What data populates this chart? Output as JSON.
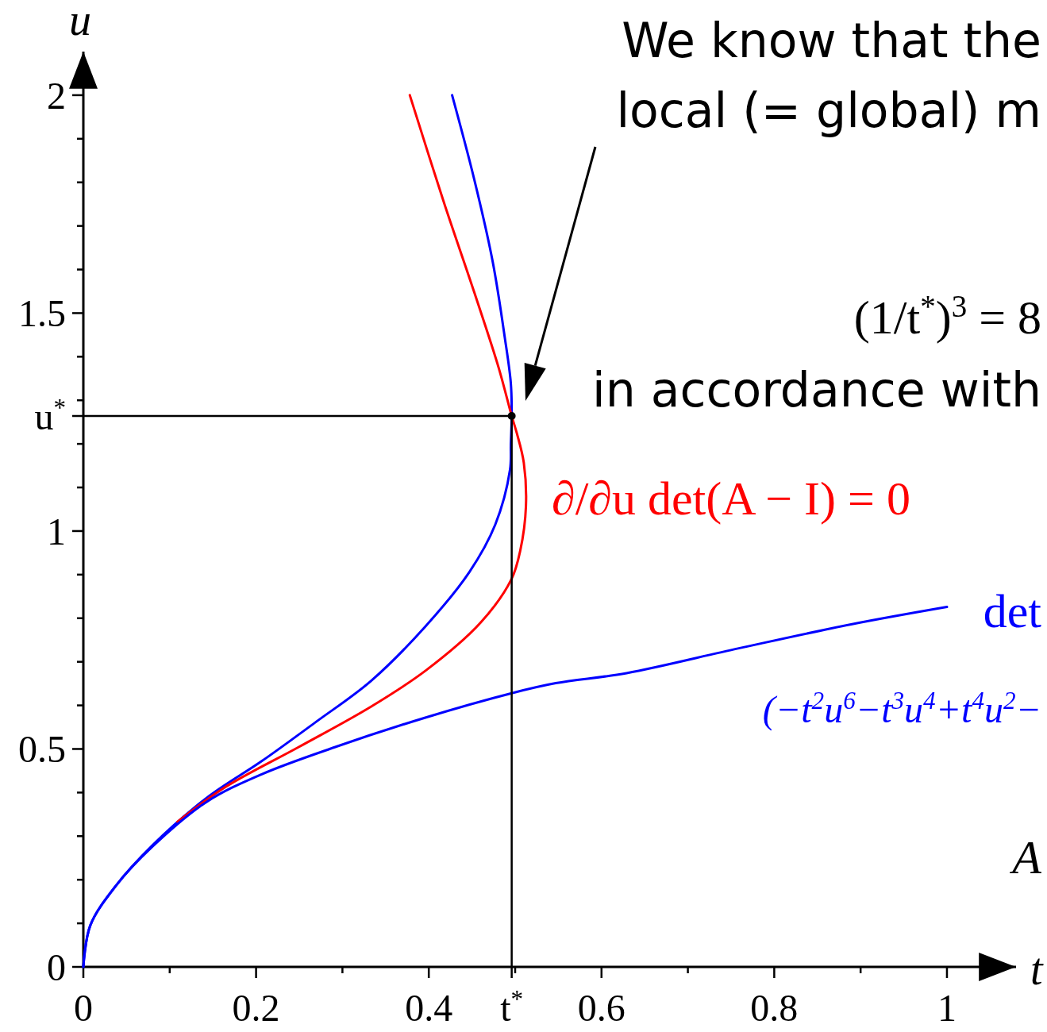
{
  "chart_data": {
    "type": "line",
    "xlabel": "t",
    "ylabel": "u",
    "xlim": [
      0,
      1.08
    ],
    "ylim": [
      0,
      2.1
    ],
    "xticks": [
      0,
      {
        "value": 0.1,
        "label": null
      },
      0.2,
      {
        "value": 0.3,
        "label": null
      },
      0.4,
      {
        "value": 0.496,
        "label": "t$^{*}$"
      },
      {
        "value": 0.5,
        "label": null
      },
      0.6,
      {
        "value": 0.7,
        "label": null
      },
      0.8,
      {
        "value": 0.9,
        "label": null
      },
      1
    ],
    "yticks": [
      0,
      {
        "value": 0.1,
        "label": null
      },
      {
        "value": 0.2,
        "label": null
      },
      {
        "value": 0.3,
        "label": null
      },
      {
        "value": 0.4,
        "label": null
      },
      0.5,
      {
        "value": 0.6,
        "label": null
      },
      {
        "value": 0.7,
        "label": null
      },
      {
        "value": 0.8,
        "label": null
      },
      {
        "value": 0.9,
        "label": null
      },
      1,
      {
        "value": 1.1,
        "label": null
      },
      {
        "value": 1.2,
        "label": null
      },
      {
        "value": 1.264,
        "label": "u$^{*}$"
      },
      {
        "value": 1.3,
        "label": null
      },
      {
        "value": 1.4,
        "label": null
      },
      1.5,
      {
        "value": 1.6,
        "label": null
      },
      {
        "value": 1.7,
        "label": null
      },
      {
        "value": 1.8,
        "label": null
      },
      {
        "value": 1.9,
        "label": null
      },
      2
    ],
    "series": [
      {
        "color": "#0000ff",
        "x": [
          0.427,
          0.4526,
          0.474,
          0.488,
          0.495,
          0.496,
          0.495,
          0.494,
          0.477,
          0.447,
          0.396,
          0.333,
          0.27,
          0.2065,
          0.143,
          0.08,
          0.038,
          0.008,
          0
        ],
        "values": [
          2.0,
          1.807,
          1.618,
          1.444,
          1.339,
          1.264,
          1.2,
          1.14,
          1.015,
          0.906,
          0.781,
          0.656,
          0.563,
          0.472,
          0.388,
          0.279,
          0.187,
          0.095,
          0
        ]
      },
      {
        "name": "∂/∂u det(A − I) = 0",
        "color": "#ff0000",
        "x": [
          0.378,
          0.417,
          0.4526,
          0.481,
          0.496,
          0.502,
          0.51,
          0.5125,
          0.506,
          0.4956,
          0.4596,
          0.3965,
          0.333,
          0.249,
          0.164,
          0.109
        ],
        "values": [
          2.0,
          1.757,
          1.548,
          1.374,
          1.264,
          1.224,
          1.157,
          1.057,
          0.956,
          0.889,
          0.789,
          0.68,
          0.597,
          0.504,
          0.412,
          0.333
        ]
      },
      {
        "name": "det\n(−t$^{2}$u$^{6}$−t$^{3}$u$^{4}$+t$^{4}$u$^{2}$−",
        "color": "#0000ff",
        "x": [
          0,
          0.008,
          0.038,
          0.08,
          0.143,
          0.2065,
          0.291,
          0.396,
          0.496,
          0.547,
          0.629,
          0.759,
          0.889,
          1
        ],
        "values": [
          0,
          0.095,
          0.187,
          0.276,
          0.379,
          0.442,
          0.504,
          0.572,
          0.628,
          0.651,
          0.674,
          0.731,
          0.786,
          0.826
        ]
      },
      {
        "color": "#000000",
        "x": [
          0,
          0.496,
          0.496
        ],
        "values": [
          1.264,
          1.264,
          0
        ]
      },
      {
        "type": "scatter",
        "color": "#000000",
        "marker": "circle",
        "x": [
          0.496
        ],
        "values": [
          1.264
        ]
      }
    ],
    "annotations": [
      "We know that the\nlocal (= global) m",
      "(1/t$^{*}$)$^{3}$ = 8",
      "in accordance with",
      "A"
    ]
  }
}
